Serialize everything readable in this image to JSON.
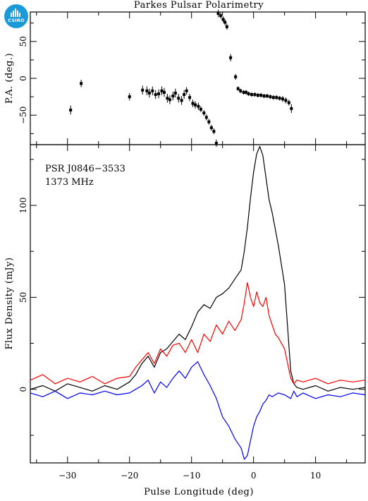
{
  "figure": {
    "title": "Parkes Pulsar Polarimetry",
    "logo_text": "CSIRO",
    "annotation_lines": [
      "PSR J0846−3533",
      "1373 MHz"
    ],
    "colors": {
      "axes": "#000000",
      "total_intensity": "#000000",
      "linear": "#ff0000",
      "circular": "#0000ff",
      "logo": "#1a9ad6"
    }
  },
  "chart_data": [
    {
      "type": "scatter",
      "panel": "position-angle",
      "title": "Parkes Pulsar Polarimetry",
      "xlabel": "",
      "ylabel": "P.A. (deg.)",
      "xlim": [
        -36,
        18
      ],
      "ylim": [
        -90,
        90
      ],
      "yticks": [
        -50,
        0,
        50
      ],
      "ytick_labels": [
        "−50",
        "0",
        "50"
      ],
      "points": {
        "x": [
          -29.5,
          -27.8,
          -20.0,
          -17.9,
          -17.2,
          -16.8,
          -16.3,
          -15.8,
          -15.3,
          -14.8,
          -14.4,
          -13.9,
          -13.5,
          -13.0,
          -12.6,
          -12.1,
          -11.6,
          -11.2,
          -10.8,
          -10.3,
          -9.8,
          -9.4,
          -8.9,
          -8.5,
          -8.0,
          -7.6,
          -7.2,
          -6.8,
          -6.4,
          -6.0,
          -5.7,
          -5.3,
          -4.9,
          -4.6,
          -4.3,
          -3.7,
          -2.9,
          -2.5,
          -2.1,
          -1.6,
          -1.2,
          -0.8,
          -0.3,
          0.2,
          0.7,
          1.2,
          1.7,
          2.2,
          2.7,
          3.2,
          3.7,
          4.2,
          4.7,
          5.2,
          5.7,
          6.1
        ],
        "y": [
          -43,
          -7,
          -25,
          -16,
          -17,
          -20,
          -17,
          -22,
          -21,
          -17,
          -19,
          -27,
          -29,
          -24,
          -20,
          -27,
          -30,
          -22,
          -17,
          -26,
          -34,
          -36,
          -38,
          -42,
          -47,
          -53,
          -59,
          -67,
          -72,
          -88,
          88,
          85,
          80,
          76,
          70,
          28,
          2,
          -14,
          -17,
          -19,
          -19,
          -21,
          -22,
          -22,
          -23,
          -23,
          -24,
          -24,
          -25,
          -26,
          -26,
          -27,
          -28,
          -30,
          -33,
          -41
        ],
        "yerr": [
          6,
          5,
          5,
          6,
          6,
          6,
          6,
          6,
          6,
          6,
          6,
          6,
          6,
          6,
          6,
          6,
          6,
          6,
          5,
          5,
          5,
          5,
          5,
          4,
          4,
          4,
          4,
          4,
          4,
          5,
          5,
          4,
          4,
          4,
          4,
          5,
          4,
          3,
          3,
          3,
          3,
          3,
          3,
          3,
          3,
          3,
          3,
          3,
          3,
          3,
          3,
          3,
          4,
          4,
          4,
          6
        ]
      }
    },
    {
      "type": "line",
      "panel": "flux-density",
      "xlabel": "Pulse Longitude (deg)",
      "ylabel": "Flux Density (mJy)",
      "xlim": [
        -36,
        18
      ],
      "ylim": [
        -40,
        133
      ],
      "xticks": [
        -30,
        -20,
        -10,
        0,
        10
      ],
      "xtick_labels": [
        "−30",
        "−20",
        "−10",
        "0",
        "10"
      ],
      "yticks": [
        0,
        50,
        100
      ],
      "ytick_labels": [
        "0",
        "50",
        "100"
      ],
      "x": [
        -36,
        -34,
        -32,
        -30,
        -28,
        -26,
        -24,
        -22,
        -20,
        -19,
        -18,
        -17,
        -16,
        -15,
        -14,
        -13,
        -12,
        -11,
        -10,
        -9,
        -8,
        -7,
        -6,
        -5,
        -4,
        -3,
        -2,
        -1.5,
        -1,
        -0.5,
        0,
        0.5,
        1,
        1.5,
        2,
        2.5,
        3,
        3.5,
        4,
        5,
        6,
        6.5,
        7,
        8,
        10,
        12,
        14,
        16,
        18
      ],
      "series": [
        {
          "name": "",
          "color": "#000000",
          "values": [
            0,
            2,
            -1,
            3,
            1,
            -1,
            2,
            0,
            4,
            8,
            14,
            18,
            12,
            20,
            22,
            26,
            30,
            27,
            34,
            42,
            46,
            44,
            50,
            52,
            55,
            60,
            65,
            75,
            88,
            104,
            118,
            128,
            132,
            127,
            115,
            103,
            96,
            87,
            78,
            57,
            10,
            3,
            1,
            0,
            2,
            -1,
            1,
            0,
            1
          ]
        },
        {
          "name": "",
          "color": "#ff0000",
          "values": [
            5,
            8,
            3,
            6,
            4,
            7,
            3,
            6,
            7,
            12,
            16,
            20,
            14,
            22,
            18,
            24,
            25,
            20,
            27,
            20,
            30,
            26,
            35,
            30,
            37,
            32,
            38,
            47,
            58,
            50,
            45,
            53,
            47,
            45,
            50,
            40,
            35,
            30,
            28,
            22,
            6,
            3,
            5,
            4,
            6,
            3,
            5,
            4,
            5
          ]
        },
        {
          "name": "",
          "color": "#0000ff",
          "values": [
            -2,
            -4,
            -1,
            -5,
            -2,
            -3,
            -1,
            -3,
            -2,
            0,
            2,
            5,
            -2,
            4,
            1,
            6,
            10,
            6,
            12,
            15,
            8,
            2,
            -5,
            -15,
            -20,
            -27,
            -32,
            -38,
            -36,
            -28,
            -20,
            -15,
            -12,
            -8,
            -6,
            -3,
            -4,
            -3,
            -2,
            -3,
            -5,
            -1,
            -4,
            -2,
            -5,
            -3,
            -4,
            -2,
            -3
          ]
        }
      ]
    }
  ]
}
